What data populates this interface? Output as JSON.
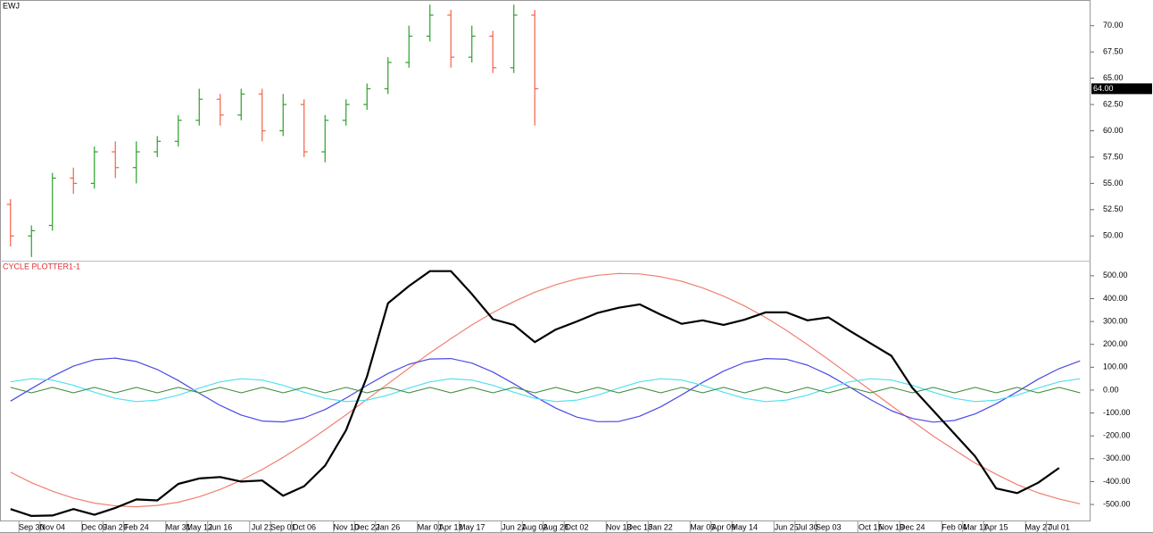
{
  "chart_data": [
    {
      "type": "ohlc",
      "title": "EWJ",
      "open": [
        53,
        50,
        51,
        55.5,
        55,
        58,
        56.5,
        58,
        59,
        61,
        63,
        61.5,
        63.5,
        60,
        62.5,
        58,
        61,
        62.5,
        64,
        66.5,
        69,
        71,
        67,
        69,
        66,
        71
      ],
      "high": [
        53.5,
        51,
        56,
        56.5,
        58.5,
        59,
        59,
        59.5,
        61.5,
        64,
        63.5,
        64,
        64,
        63.5,
        63,
        61.5,
        63,
        64.5,
        67,
        70,
        72,
        71.5,
        70,
        69.5,
        72,
        71.5
      ],
      "low": [
        49,
        48,
        50.5,
        54,
        54.5,
        55.5,
        55,
        57.5,
        58.5,
        60.5,
        60.5,
        61,
        59,
        59.5,
        57.5,
        57,
        60.5,
        62,
        63.5,
        66,
        68.5,
        66,
        66.5,
        65.5,
        65.5,
        60.5
      ],
      "close": [
        50,
        50.5,
        55.5,
        55,
        58,
        56.5,
        58,
        59,
        61,
        63,
        61.5,
        63.5,
        60,
        62.5,
        58,
        61,
        62.5,
        64,
        66.5,
        69,
        71,
        67,
        69,
        66,
        71,
        64
      ],
      "up_color": "#2ca02c",
      "down_color": "#f4614b",
      "last_label": "64.00",
      "ylim": [
        47.73,
        72.27
      ],
      "yticks": [
        {
          "value": 50,
          "label": "50.00"
        },
        {
          "value": 52.5,
          "label": "52.50"
        },
        {
          "value": 55,
          "label": "55.00"
        },
        {
          "value": 57.5,
          "label": "57.50"
        },
        {
          "value": 60,
          "label": "60.00"
        },
        {
          "value": 62.5,
          "label": "62.50"
        },
        {
          "value": 65,
          "label": "65.00"
        },
        {
          "value": 67.5,
          "label": "67.50"
        },
        {
          "value": 70,
          "label": "70.00"
        }
      ]
    },
    {
      "type": "line",
      "title": "CYCLE PLOTTER1-1",
      "title_color": "#e03030",
      "categories": [
        null,
        "Sep 30",
        "Nov 04",
        null,
        "Dec 09",
        "Jan 20",
        "Feb 24",
        null,
        "Mar 31",
        "May 12",
        "Jun 16",
        null,
        "Jul 21",
        "Sep 01",
        "Oct 06",
        null,
        "Nov 10",
        "Dec 22",
        "Jan 26",
        null,
        "Mar 01",
        "Apr 12",
        "May 17",
        null,
        "Jun 21",
        "Aug 02",
        "Aug 28",
        "Oct 02",
        null,
        "Nov 13",
        "Dec 18",
        "Jan 22",
        null,
        "Mar 05",
        "Apr 09",
        "May 14",
        null,
        "Jun 25",
        "Jul 30",
        "Sep 03",
        null,
        "Oct 15",
        "Nov 19",
        "Dec 24",
        null,
        "Feb 04",
        "Mar 11",
        "Apr 15",
        null,
        "May 27",
        "Jul 01",
        null
      ],
      "series": [
        {
          "color": "#f08070",
          "width": 1.2,
          "values": [
            -359,
            -405,
            -442,
            -472,
            -494,
            -506,
            -510,
            -504,
            -490,
            -466,
            -434,
            -394,
            -347,
            -294,
            -236,
            -173,
            -108,
            -40,
            28,
            96,
            163,
            225,
            285,
            339,
            387,
            428,
            461,
            486,
            502,
            510,
            508,
            496,
            476,
            447,
            411,
            368,
            318,
            261,
            199,
            134,
            67,
            0,
            -68,
            -135,
            -201,
            -261,
            -319,
            -368,
            -413,
            -449,
            -476,
            -497
          ]
        },
        {
          "color": "#4a4ae8",
          "width": 1.2,
          "values": [
            -48,
            7,
            60,
            105,
            133,
            140,
            125,
            90,
            42,
            -14,
            -67,
            -109,
            -135,
            -139,
            -121,
            -85,
            -35,
            21,
            73,
            113,
            136,
            138,
            118,
            79,
            28,
            -28,
            -79,
            -118,
            -138,
            -137,
            -114,
            -73,
            -21,
            34,
            83,
            121,
            138,
            135,
            109,
            67,
            14,
            -41,
            -90,
            -124,
            -140,
            -133,
            -104,
            -60,
            -7,
            48,
            94,
            128
          ]
        },
        {
          "color": "#50e0f0",
          "width": 1.2,
          "values": [
            36,
            50,
            44,
            21,
            -9,
            -36,
            -50,
            -44,
            -22,
            9,
            36,
            50,
            44,
            21,
            -9,
            -36,
            -50,
            -44,
            -22,
            9,
            36,
            50,
            44,
            21,
            -9,
            -36,
            -50,
            -44,
            -22,
            9,
            36,
            50,
            44,
            21,
            -9,
            -36,
            -50,
            -44,
            -22,
            9,
            36,
            50,
            44,
            21,
            -9,
            -36,
            -50,
            -44,
            -22,
            9,
            36,
            50
          ]
        },
        {
          "color": "#3a8a3a",
          "width": 1,
          "values": [
            12,
            -12,
            12,
            -12,
            12,
            -12,
            12,
            -12,
            12,
            -12,
            12,
            -12,
            12,
            -12,
            12,
            -12,
            12,
            -12,
            12,
            -12,
            12,
            -12,
            12,
            -12,
            12,
            -12,
            12,
            -12,
            12,
            -12,
            12,
            -12,
            12,
            -12,
            12,
            -12,
            12,
            -12,
            12,
            -12,
            12,
            -12,
            12,
            -12,
            12,
            -12,
            12,
            -12,
            12,
            -12,
            12,
            -12
          ]
        },
        {
          "color": "#000000",
          "width": 2.2,
          "values": [
            -520,
            -550,
            -548,
            -520,
            -545,
            -515,
            -478,
            -482,
            -410,
            -386,
            -380,
            -400,
            -395,
            -462,
            -420,
            -330,
            -175,
            60,
            380,
            455,
            520,
            520,
            420,
            310,
            285,
            210,
            265,
            300,
            338,
            360,
            375,
            330,
            290,
            305,
            285,
            308,
            340,
            340,
            305,
            318,
            260,
            205,
            150,
            10,
            -90,
            -190,
            -290,
            -430,
            -450,
            -405,
            -340,
            null
          ]
        }
      ],
      "ylim": [
        -570,
        558
      ],
      "yticks": [
        {
          "value": -500,
          "label": "-500.00"
        },
        {
          "value": -400,
          "label": "-400.00"
        },
        {
          "value": -300,
          "label": "-300.00"
        },
        {
          "value": -200,
          "label": "-200.00"
        },
        {
          "value": -100,
          "label": "-100.00"
        },
        {
          "value": 0,
          "label": "0.00"
        },
        {
          "value": 100,
          "label": "100.00"
        },
        {
          "value": 200,
          "label": "200.00"
        },
        {
          "value": 300,
          "label": "300.00"
        },
        {
          "value": 400,
          "label": "400.00"
        },
        {
          "value": 500,
          "label": "500.00"
        }
      ]
    }
  ]
}
